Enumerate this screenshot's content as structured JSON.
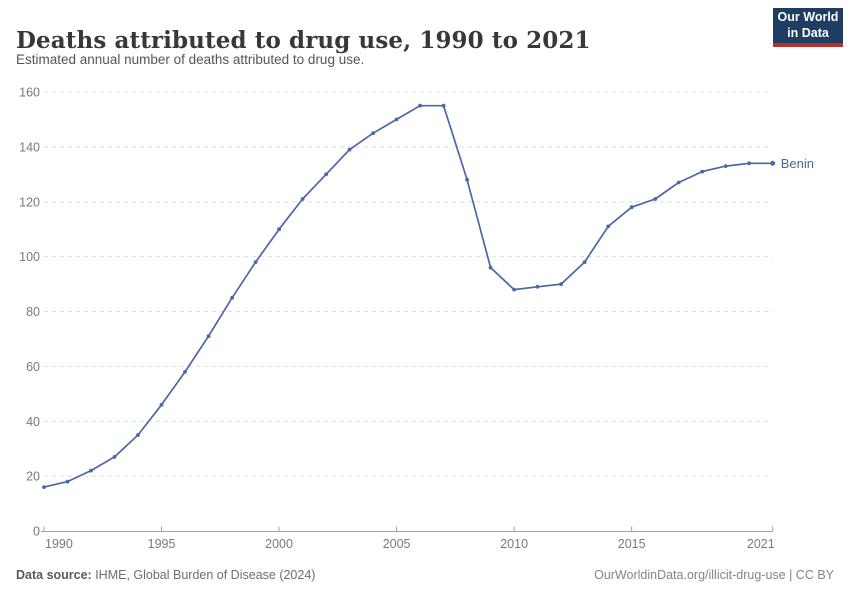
{
  "header": {
    "title": "Deaths attributed to drug use, 1990 to 2021",
    "subtitle": "Estimated annual number of deaths attributed to drug use.",
    "logo": {
      "line1": "Our World",
      "line2": "in Data",
      "bg_color": "#1d3d63",
      "stripe_color": "#b5312d",
      "text_color": "#ffffff"
    }
  },
  "chart_data": {
    "type": "line",
    "title": "Deaths attributed to drug use, 1990 to 2021",
    "xlabel": "",
    "ylabel": "",
    "xlim": [
      1990,
      2021
    ],
    "ylim": [
      0,
      160
    ],
    "x_ticks": [
      1990,
      1995,
      2000,
      2005,
      2010,
      2015,
      2021
    ],
    "y_ticks": [
      0,
      20,
      40,
      60,
      80,
      100,
      120,
      140,
      160
    ],
    "grid": "horizontal-dashed",
    "legend_position": "end-of-line-label",
    "colors": {
      "line": "#4a68a3",
      "grid": "#dddddd",
      "axis": "#a0a0a0",
      "tick_label": "#7a7a7a"
    },
    "series": [
      {
        "name": "Benin",
        "x": [
          1990,
          1991,
          1992,
          1993,
          1994,
          1995,
          1996,
          1997,
          1998,
          1999,
          2000,
          2001,
          2002,
          2003,
          2004,
          2005,
          2006,
          2007,
          2008,
          2009,
          2010,
          2011,
          2012,
          2013,
          2014,
          2015,
          2016,
          2017,
          2018,
          2019,
          2020,
          2021
        ],
        "values": [
          16,
          18,
          22,
          27,
          35,
          46,
          58,
          71,
          85,
          98,
          110,
          121,
          130,
          139,
          145,
          150,
          155,
          155,
          128,
          96,
          88,
          89,
          90,
          98,
          111,
          118,
          121,
          127,
          131,
          133,
          134,
          134
        ]
      }
    ]
  },
  "footer": {
    "source_label": "Data source:",
    "source_text": " IHME, Global Burden of Disease (2024)",
    "license_text": "OurWorldinData.org/illicit-drug-use | CC BY"
  }
}
